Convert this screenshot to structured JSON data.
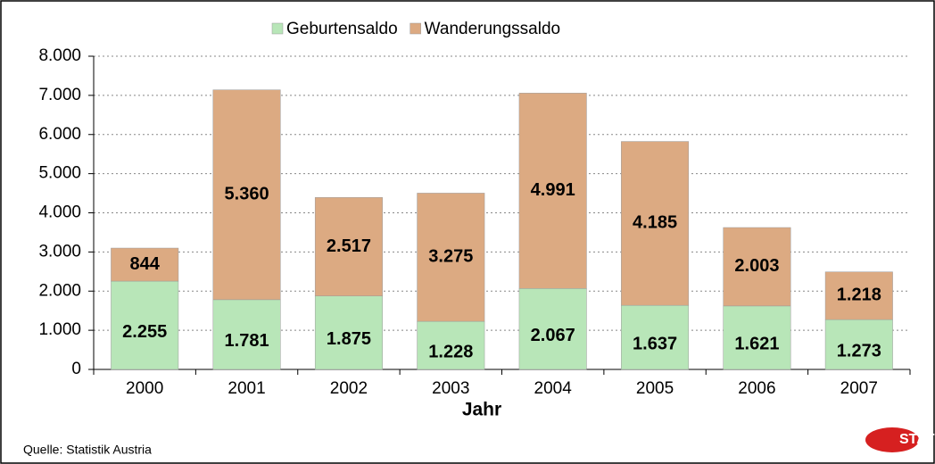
{
  "chart_data": {
    "type": "stacked_bar",
    "x_label": "Jahr",
    "source": "Quelle: Statistik Austria",
    "logo_text": "STAT",
    "categories": [
      "2000",
      "2001",
      "2002",
      "2003",
      "2004",
      "2005",
      "2006",
      "2007"
    ],
    "series": [
      {
        "name": "Geburtensaldo",
        "color": "#b8e6b8",
        "values": [
          2255,
          1781,
          1875,
          1228,
          2067,
          1637,
          1621,
          1273
        ],
        "value_labels": [
          "2.255",
          "1.781",
          "1.875",
          "1.228",
          "2.067",
          "1.637",
          "1.621",
          "1.273"
        ]
      },
      {
        "name": "Wanderungssaldo",
        "color": "#dcaa82",
        "values": [
          844,
          5360,
          2517,
          3275,
          4991,
          4185,
          2003,
          1218
        ],
        "value_labels": [
          "844",
          "5.360",
          "2.517",
          "3.275",
          "4.991",
          "4.185",
          "2.003",
          "1.218"
        ]
      }
    ],
    "ylim": [
      0,
      8000
    ],
    "yticks": [
      0,
      {
        "value": 1000,
        "label": "1.000"
      },
      {
        "value": 2000,
        "label": "2.000"
      },
      {
        "value": 3000,
        "label": "3.000"
      },
      {
        "value": 4000,
        "label": "4.000"
      },
      {
        "value": 5000,
        "label": "5.000"
      },
      {
        "value": 6000,
        "label": "6.000"
      },
      {
        "value": 7000,
        "label": "7.000"
      },
      {
        "value": 8000,
        "label": "8.000"
      }
    ],
    "grid": true,
    "legend": "top"
  }
}
